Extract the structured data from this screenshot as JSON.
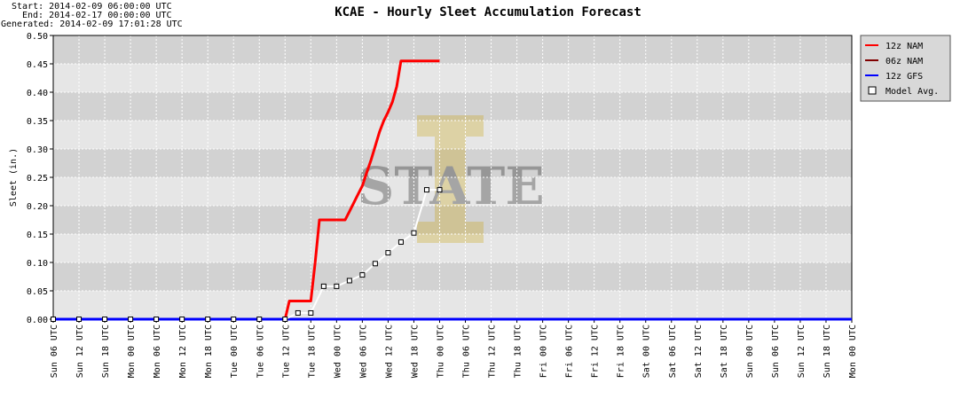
{
  "header": {
    "start": "Start: 2014-02-09 06:00:00 UTC",
    "end": "End: 2014-02-17 00:00:00 UTC",
    "generated": "Generated: 2014-02-09 17:01:28 UTC"
  },
  "chart_data": {
    "type": "line",
    "title": "KCAE - Hourly Sleet Accumulation Forecast",
    "ylabel": "Sleet (in.)",
    "xlabel": "",
    "ylim": [
      0,
      0.5
    ],
    "yticks": [
      "0.00",
      "0.05",
      "0.10",
      "0.15",
      "0.20",
      "0.25",
      "0.30",
      "0.35",
      "0.40",
      "0.45",
      "0.50"
    ],
    "xticks": [
      "Sun 06 UTC",
      "Sun 12 UTC",
      "Sun 18 UTC",
      "Mon 00 UTC",
      "Mon 06 UTC",
      "Mon 12 UTC",
      "Mon 18 UTC",
      "Tue 00 UTC",
      "Tue 06 UTC",
      "Tue 12 UTC",
      "Tue 18 UTC",
      "Wed 00 UTC",
      "Wed 06 UTC",
      "Wed 12 UTC",
      "Wed 18 UTC",
      "Thu 00 UTC",
      "Thu 06 UTC",
      "Thu 12 UTC",
      "Thu 18 UTC",
      "Fri 00 UTC",
      "Fri 06 UTC",
      "Fri 12 UTC",
      "Fri 18 UTC",
      "Sat 00 UTC",
      "Sat 06 UTC",
      "Sat 12 UTC",
      "Sat 18 UTC",
      "Sun 00 UTC",
      "Sun 06 UTC",
      "Sun 12 UTC",
      "Sun 18 UTC",
      "Mon 00 UTC"
    ],
    "grid": true,
    "legend_position": "right",
    "series": [
      {
        "name": "12z NAM",
        "color": "#ff0000",
        "x": [
          "Sun 06 UTC",
          "Tue 12 UTC",
          "Tue 13 UTC",
          "Tue 14 UTC",
          "Tue 15 UTC",
          "Tue 16 UTC",
          "Tue 17 UTC",
          "Tue 18 UTC",
          "Tue 19 UTC",
          "Tue 20 UTC",
          "Tue 21 UTC",
          "Tue 22 UTC",
          "Tue 23 UTC",
          "Wed 00 UTC",
          "Wed 01 UTC",
          "Wed 02 UTC",
          "Wed 03 UTC",
          "Wed 04 UTC",
          "Wed 05 UTC",
          "Wed 06 UTC",
          "Wed 07 UTC",
          "Wed 08 UTC",
          "Wed 09 UTC",
          "Wed 10 UTC",
          "Wed 11 UTC",
          "Wed 12 UTC",
          "Wed 13 UTC",
          "Wed 14 UTC",
          "Wed 15 UTC",
          "Wed 16 UTC",
          "Wed 17 UTC",
          "Wed 18 UTC",
          "Wed 19 UTC",
          "Wed 20 UTC",
          "Wed 21 UTC",
          "Wed 22 UTC",
          "Wed 23 UTC",
          "Thu 00 UTC"
        ],
        "values": [
          0.0,
          0.0,
          0.032,
          0.032,
          0.032,
          0.032,
          0.032,
          0.032,
          0.1,
          0.175,
          0.175,
          0.175,
          0.175,
          0.175,
          0.175,
          0.175,
          0.19,
          0.205,
          0.22,
          0.235,
          0.258,
          0.28,
          0.305,
          0.33,
          0.35,
          0.365,
          0.383,
          0.41,
          0.455,
          0.455,
          0.455,
          0.455,
          0.455,
          0.455,
          0.455,
          0.455,
          0.455,
          0.455
        ]
      },
      {
        "name": "06z NAM",
        "color": "#800000",
        "x": [
          "Sun 06 UTC",
          "Sun 12 UTC"
        ],
        "values": [
          0.0,
          0.0
        ]
      },
      {
        "name": "12z GFS",
        "color": "#0000ff",
        "x": [
          "Sun 06 UTC",
          "Mon 00 UTC"
        ],
        "values": [
          0.0,
          0.0
        ]
      },
      {
        "name": "Model Avg.",
        "color": "#ffffff",
        "x": [
          "Sun 06 UTC",
          "Sun 12 UTC",
          "Sun 18 UTC",
          "Mon 00 UTC",
          "Mon 06 UTC",
          "Mon 12 UTC",
          "Mon 18 UTC",
          "Tue 00 UTC",
          "Tue 06 UTC",
          "Tue 12 UTC",
          "Tue 15 UTC",
          "Tue 18 UTC",
          "Tue 21 UTC",
          "Wed 00 UTC",
          "Wed 03 UTC",
          "Wed 06 UTC",
          "Wed 09 UTC",
          "Wed 12 UTC",
          "Wed 15 UTC",
          "Wed 18 UTC",
          "Wed 21 UTC",
          "Thu 00 UTC"
        ],
        "values": [
          0.0,
          0.0,
          0.0,
          0.0,
          0.0,
          0.0,
          0.0,
          0.0,
          0.0,
          0.0,
          0.011,
          0.011,
          0.058,
          0.058,
          0.068,
          0.078,
          0.098,
          0.117,
          0.136,
          0.152,
          0.228,
          0.228
        ]
      }
    ]
  },
  "watermark_text": "STATE",
  "colors": {
    "band_dark": "#d2d2d2",
    "band_light": "#e6e6e6",
    "grid": "#ffffff",
    "legend_bg": "#d8d8d8",
    "watermark": "#b8860b"
  }
}
